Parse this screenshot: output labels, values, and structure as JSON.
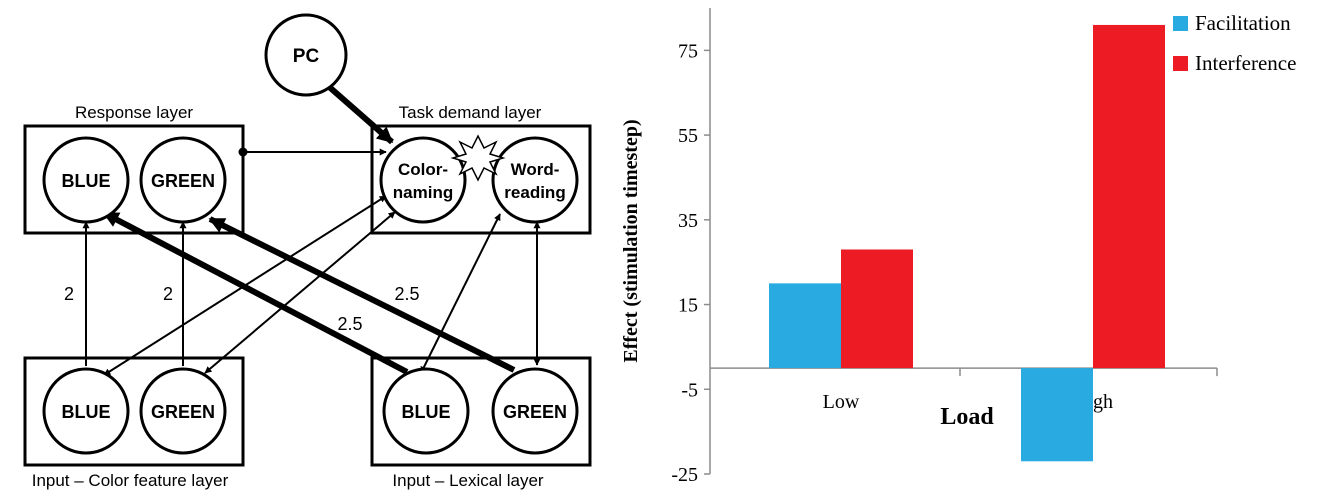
{
  "diagram": {
    "pc_label": "PC",
    "response_layer": {
      "title": "Response layer",
      "nodes": [
        "BLUE",
        "GREEN"
      ]
    },
    "task_layer": {
      "title": "Task demand layer",
      "nodes": [
        [
          "Color-",
          "naming"
        ],
        [
          "Word-",
          "reading"
        ]
      ]
    },
    "color_layer": {
      "title": "Input – Color feature layer",
      "nodes": [
        "BLUE",
        "GREEN"
      ]
    },
    "lexical_layer": {
      "title": "Input – Lexical layer",
      "nodes": [
        "BLUE",
        "GREEN"
      ]
    },
    "weights": {
      "color_blue": "2",
      "color_green": "2",
      "lexical_green": "2.5",
      "lexical_blue": "2.5"
    }
  },
  "chart_data": {
    "type": "bar",
    "title": "",
    "xlabel": "Load",
    "ylabel": "Effect (stimulation timestep)",
    "categories": [
      "Low",
      "High"
    ],
    "series": [
      {
        "name": "Facilitation",
        "values": [
          20,
          -22
        ],
        "color": "#29abe2"
      },
      {
        "name": "Interference",
        "values": [
          28,
          81
        ],
        "color": "#ed1c24"
      }
    ],
    "ylim": [
      -25,
      85
    ],
    "yticks": [
      -25,
      -5,
      15,
      35,
      55,
      75
    ],
    "legend_position": "top-right",
    "grid": false
  }
}
